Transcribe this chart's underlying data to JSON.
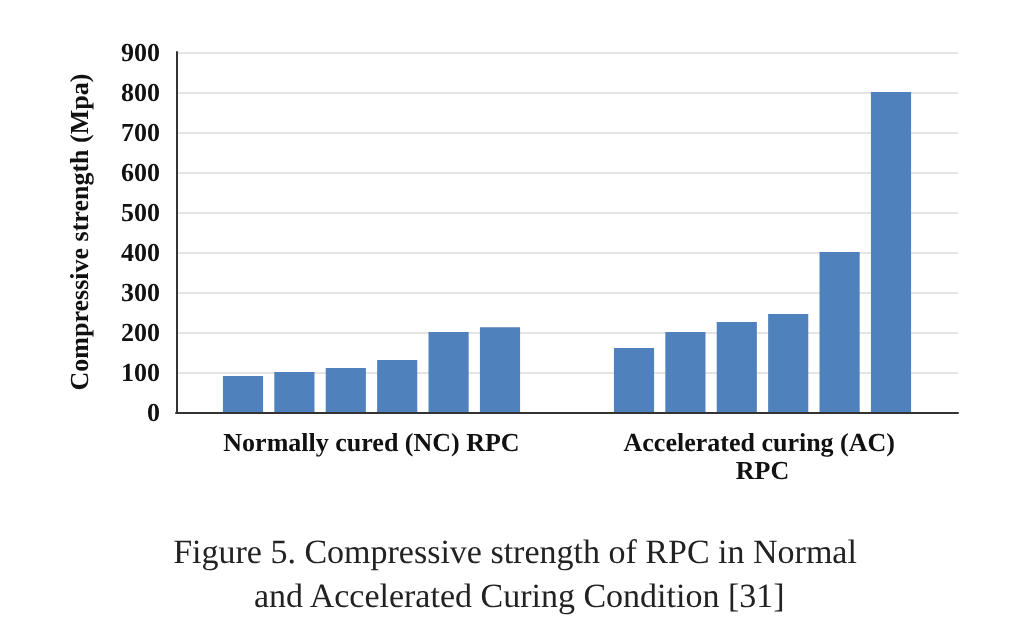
{
  "chart_data": {
    "type": "bar",
    "title": "Figure 5. Compressive strength of RPC in Normal and Accelerated Curing Condition [31]",
    "ylabel": "Compressive strength (Mpa)",
    "categories": [
      "Normally cured (NC) RPC",
      "Accelerated curing (AC) RPC"
    ],
    "series": [
      {
        "color": "#4f81bd",
        "values": [
          90,
          160
        ]
      },
      {
        "color": "#4f81bd",
        "values": [
          100,
          200
        ]
      },
      {
        "color": "#4f81bd",
        "values": [
          110,
          225
        ]
      },
      {
        "color": "#4f81bd",
        "values": [
          130,
          245
        ]
      },
      {
        "color": "#4f81bd",
        "values": [
          200,
          400
        ]
      },
      {
        "color": "#4f81bd",
        "values": [
          212,
          800
        ]
      }
    ],
    "ylim": [
      0,
      900
    ],
    "yticks": [
      0,
      100,
      200,
      300,
      400,
      500,
      600,
      700,
      800,
      900
    ],
    "grid": "y"
  }
}
